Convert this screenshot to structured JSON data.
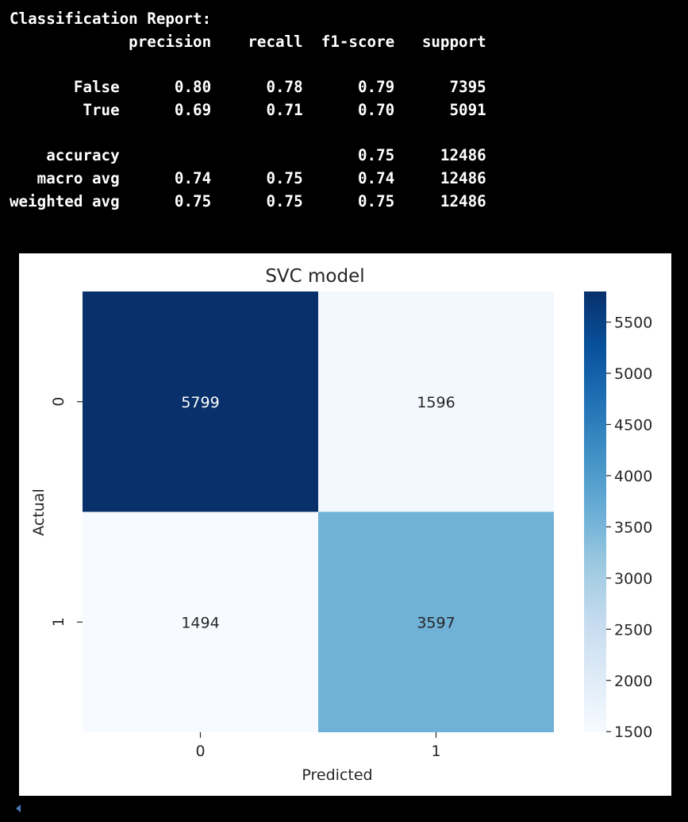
{
  "report": {
    "title": "Classification Report:",
    "columns": [
      "precision",
      "recall",
      "f1-score",
      "support"
    ],
    "rows": [
      {
        "label": "False",
        "precision": "0.80",
        "recall": "0.78",
        "f1": "0.79",
        "support": "7395"
      },
      {
        "label": "True",
        "precision": "0.69",
        "recall": "0.71",
        "f1": "0.70",
        "support": "5091"
      }
    ],
    "summary": [
      {
        "label": "accuracy",
        "precision": "",
        "recall": "",
        "f1": "0.75",
        "support": "12486"
      },
      {
        "label": "macro avg",
        "precision": "0.74",
        "recall": "0.75",
        "f1": "0.74",
        "support": "12486"
      },
      {
        "label": "weighted avg",
        "precision": "0.75",
        "recall": "0.75",
        "f1": "0.75",
        "support": "12486"
      }
    ]
  },
  "chart_data": {
    "type": "heatmap",
    "title": "SVC model",
    "xlabel": "Predicted",
    "ylabel": "Actual",
    "x_categories": [
      "0",
      "1"
    ],
    "y_categories": [
      "0",
      "1"
    ],
    "values": [
      [
        5799,
        1596
      ],
      [
        1494,
        3597
      ]
    ],
    "colorbar": {
      "min": 1494,
      "max": 5799,
      "ticks": [
        1500,
        2000,
        2500,
        3000,
        3500,
        4000,
        4500,
        5000,
        5500
      ],
      "colormap": "Blues",
      "low_color": "#f7fbff",
      "high_color": "#08306b"
    }
  }
}
